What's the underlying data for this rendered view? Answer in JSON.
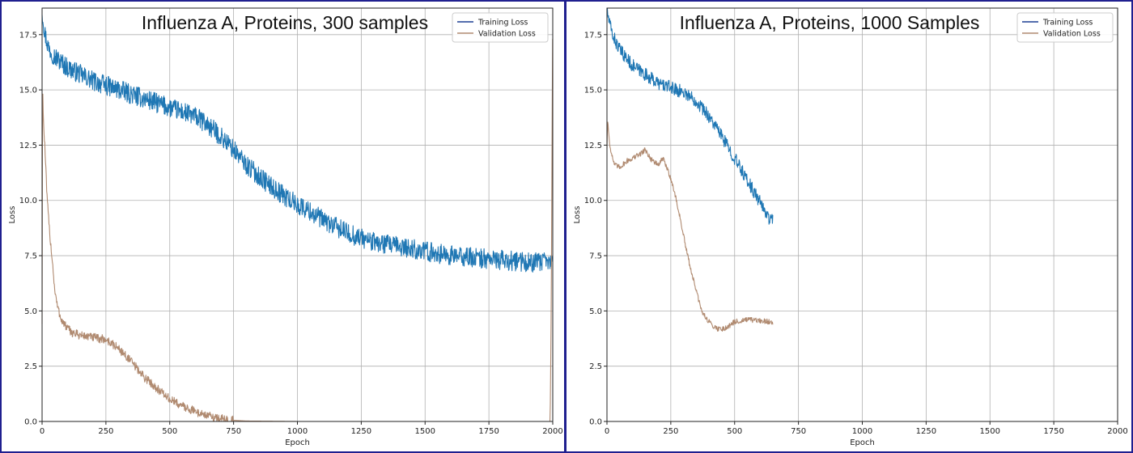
{
  "colors": {
    "training": "#1f77b4",
    "training_legend": "#1c3f94",
    "validation": "#b08a70",
    "grid": "#b0b0b0",
    "border": "#1f1f8f"
  },
  "chart_data": [
    {
      "type": "line",
      "title": "Influenza A, Proteins, 300 samples",
      "xlabel": "Epoch",
      "ylabel": "Loss",
      "xlim": [
        0,
        2000
      ],
      "ylim": [
        0,
        18.7
      ],
      "xticks": [
        0,
        250,
        500,
        750,
        1000,
        1250,
        1500,
        1750,
        2000
      ],
      "yticks": [
        0.0,
        2.5,
        5.0,
        7.5,
        10.0,
        12.5,
        15.0,
        17.5
      ],
      "grid": true,
      "legend_position": "top-right",
      "series": [
        {
          "name": "Training Loss",
          "noise": 0.45,
          "x": [
            0,
            10,
            25,
            50,
            100,
            150,
            200,
            250,
            300,
            350,
            400,
            450,
            500,
            550,
            600,
            650,
            700,
            750,
            800,
            850,
            900,
            950,
            1000,
            1050,
            1100,
            1150,
            1200,
            1250,
            1300,
            1400,
            1500,
            1600,
            1700,
            1800,
            1900,
            2000
          ],
          "y": [
            18.6,
            17.6,
            16.9,
            16.5,
            16.0,
            15.7,
            15.4,
            15.2,
            15.0,
            14.8,
            14.6,
            14.4,
            14.2,
            14.0,
            13.8,
            13.4,
            12.9,
            12.3,
            11.6,
            11.1,
            10.6,
            10.2,
            9.8,
            9.5,
            9.1,
            8.8,
            8.5,
            8.3,
            8.1,
            7.9,
            7.7,
            7.5,
            7.4,
            7.3,
            7.2,
            7.2
          ]
        },
        {
          "name": "Validation Loss",
          "noise": 0.2,
          "x": [
            0,
            2,
            5,
            10,
            15,
            20,
            30,
            40,
            50,
            60,
            70,
            80,
            100,
            120,
            150,
            200,
            250,
            300,
            350,
            400,
            450,
            500,
            550,
            600,
            650,
            700,
            750,
            800,
            900,
            1000,
            1500,
            1990,
            1994,
            1997,
            2000
          ],
          "y": [
            4.5,
            15.7,
            13.6,
            12.6,
            11.3,
            10.0,
            8.5,
            7.3,
            5.9,
            5.2,
            4.8,
            4.5,
            4.2,
            4.0,
            3.9,
            3.8,
            3.7,
            3.3,
            2.7,
            2.0,
            1.5,
            1.0,
            0.7,
            0.45,
            0.25,
            0.12,
            0.05,
            0.02,
            0.01,
            0.0,
            0.0,
            0.0,
            5.0,
            12.0,
            18.5
          ]
        }
      ]
    },
    {
      "type": "line",
      "title": "Influenza A, Proteins, 1000 Samples",
      "xlabel": "Epoch",
      "ylabel": "Loss",
      "xlim": [
        0,
        2000
      ],
      "ylim": [
        0,
        18.7
      ],
      "xticks": [
        0,
        250,
        500,
        750,
        1000,
        1250,
        1500,
        1750,
        2000
      ],
      "yticks": [
        0.0,
        2.5,
        5.0,
        7.5,
        10.0,
        12.5,
        15.0,
        17.5
      ],
      "grid": true,
      "legend_position": "top-right",
      "series": [
        {
          "name": "Training Loss",
          "noise": 0.3,
          "x": [
            0,
            10,
            25,
            50,
            100,
            150,
            200,
            250,
            300,
            350,
            400,
            450,
            500,
            550,
            600,
            640,
            650
          ],
          "y": [
            18.6,
            18.0,
            17.4,
            16.8,
            16.1,
            15.7,
            15.3,
            15.1,
            14.9,
            14.5,
            13.8,
            12.9,
            11.9,
            10.9,
            9.9,
            9.1,
            9.3
          ]
        },
        {
          "name": "Validation Loss",
          "noise": 0.12,
          "x": [
            0,
            3,
            10,
            20,
            30,
            50,
            80,
            100,
            130,
            150,
            170,
            200,
            220,
            230,
            250,
            270,
            290,
            310,
            330,
            350,
            370,
            400,
            430,
            460,
            500,
            550,
            600,
            650
          ],
          "y": [
            12.4,
            13.6,
            12.6,
            12.0,
            11.6,
            11.5,
            11.8,
            11.9,
            12.1,
            12.3,
            11.9,
            11.6,
            11.9,
            11.6,
            11.0,
            10.1,
            9.0,
            7.8,
            6.8,
            5.9,
            5.0,
            4.5,
            4.2,
            4.2,
            4.5,
            4.6,
            4.55,
            4.5
          ]
        }
      ]
    }
  ]
}
